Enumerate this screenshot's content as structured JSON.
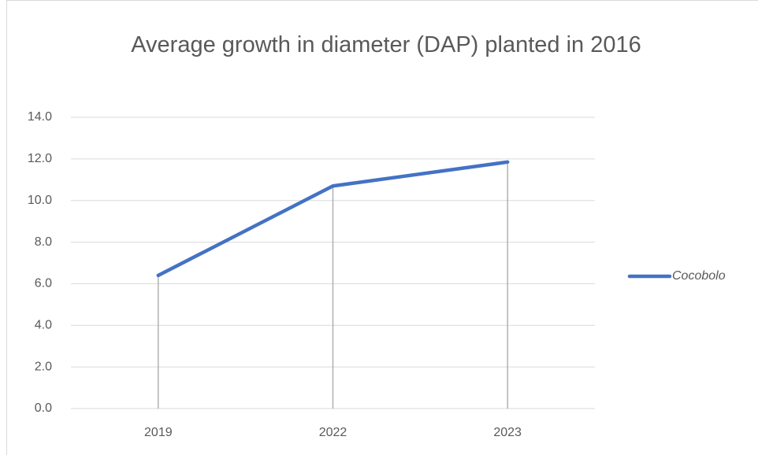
{
  "chart_data": {
    "type": "line",
    "title": "Average growth in diameter (DAP) planted in 2016",
    "categories": [
      "2019",
      "2022",
      "2023"
    ],
    "series": [
      {
        "name": "Cocobolo",
        "color": "#4472c4",
        "values": [
          6.4,
          10.7,
          11.85
        ]
      }
    ],
    "ylim": [
      0,
      14
    ],
    "yticks": [
      {
        "value": 0,
        "label": "0.0"
      },
      {
        "value": 2,
        "label": "2.0"
      },
      {
        "value": 4,
        "label": "4.0"
      },
      {
        "value": 6,
        "label": "6.0"
      },
      {
        "value": 8,
        "label": "8.0"
      },
      {
        "value": 10,
        "label": "10.0"
      },
      {
        "value": 12,
        "label": "12.0"
      },
      {
        "value": 14,
        "label": "14.0"
      }
    ],
    "grid": true,
    "drop_lines": true,
    "legend": "right"
  }
}
